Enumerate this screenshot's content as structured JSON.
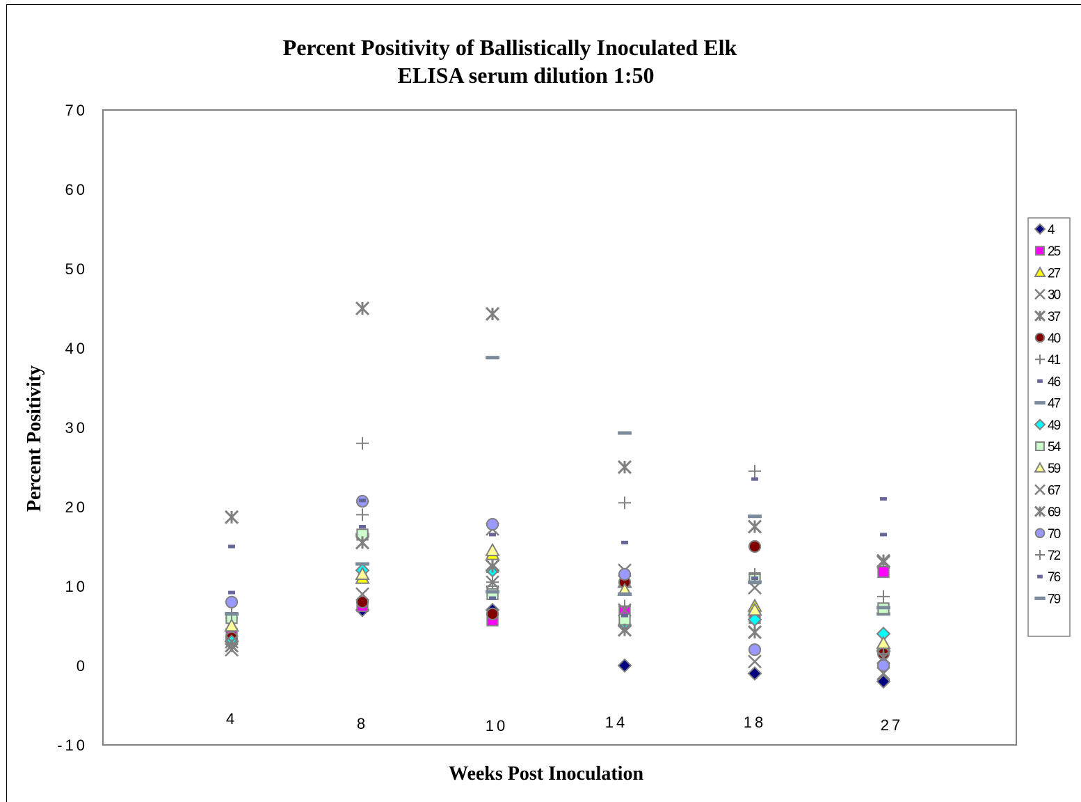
{
  "chart_data": {
    "type": "scatter",
    "title": "Percent Positivity of Ballistically Inoculated Elk",
    "subtitle": "ELISA serum dilution 1:50",
    "xlabel": "Weeks Post Inoculation",
    "ylabel": "Percent Positivity",
    "categories": [
      "4",
      "8",
      "10",
      "14",
      "18",
      "27"
    ],
    "ylim": [
      -10,
      70
    ],
    "yticks": [
      "70",
      "60",
      "50",
      "40",
      "30",
      "20",
      "10",
      "0",
      "-10"
    ],
    "grid": false,
    "legend_position": "right",
    "series": [
      {
        "name": "4",
        "marker": "diamond",
        "fill": "#000080",
        "values": [
          3,
          7,
          7,
          0,
          -1,
          -2
        ]
      },
      {
        "name": "25",
        "marker": "square",
        "fill": "#ff00ff",
        "values": [
          4,
          7.5,
          5.7,
          6.8,
          6,
          11.8
        ]
      },
      {
        "name": "27",
        "marker": "triangle",
        "fill": "#ffff00",
        "values": [
          5,
          11,
          14,
          10.5,
          7.5,
          2.5
        ]
      },
      {
        "name": "30",
        "marker": "x",
        "fill": "#808080",
        "values": [
          2,
          9,
          10.5,
          7,
          0.5,
          -1
        ]
      },
      {
        "name": "37",
        "marker": "asterisk",
        "fill": "#808080",
        "values": [
          18.7,
          45,
          44.3,
          25,
          17.5,
          13.2
        ]
      },
      {
        "name": "40",
        "marker": "circle",
        "fill": "#800000",
        "values": [
          3.5,
          8,
          6.5,
          10.5,
          15,
          1.5
        ]
      },
      {
        "name": "41",
        "marker": "plus",
        "fill": "#808080",
        "values": [
          6,
          28,
          10,
          20.5,
          24.5,
          8.7
        ]
      },
      {
        "name": "46",
        "marker": "shortdash",
        "fill": "#808080",
        "values": [
          15,
          17.5,
          16.5,
          15.5,
          23.5,
          21
        ]
      },
      {
        "name": "47",
        "marker": "longdash",
        "fill": "#808080",
        "values": [
          6.5,
          16.5,
          38.8,
          29.3,
          18.8,
          6.5
        ]
      },
      {
        "name": "49",
        "marker": "diamond",
        "fill": "#00ffff",
        "values": [
          3,
          12,
          12,
          5,
          5.8,
          4
        ]
      },
      {
        "name": "54",
        "marker": "square",
        "fill": "#ccffcc",
        "values": [
          6,
          16.5,
          9,
          5.8,
          11,
          7.2
        ]
      },
      {
        "name": "59",
        "marker": "triangle",
        "fill": "#ffff99",
        "values": [
          5,
          11.5,
          14.5,
          9.5,
          7,
          2.8
        ]
      },
      {
        "name": "67",
        "marker": "x",
        "fill": "#808080",
        "values": [
          3,
          15.5,
          17.2,
          12,
          9.8,
          13
        ]
      },
      {
        "name": "69",
        "marker": "asterisk",
        "fill": "#808080",
        "values": [
          2.5,
          15.5,
          12.5,
          4.5,
          4.2,
          1
        ]
      },
      {
        "name": "70",
        "marker": "circle",
        "fill": "#9999ff",
        "values": [
          8,
          20.7,
          17.8,
          11.5,
          2,
          0
        ]
      },
      {
        "name": "72",
        "marker": "plus",
        "fill": "#808080",
        "values": [
          6.5,
          19,
          10.5,
          7.5,
          11.5,
          1.5
        ]
      },
      {
        "name": "76",
        "marker": "shortdash",
        "fill": "#808080",
        "values": [
          9.2,
          20.8,
          8.5,
          6.3,
          11,
          16.5
        ]
      },
      {
        "name": "79",
        "marker": "longdash",
        "fill": "#808080",
        "values": [
          6.5,
          12.8,
          9.3,
          9,
          10.5,
          7.3
        ]
      }
    ]
  }
}
